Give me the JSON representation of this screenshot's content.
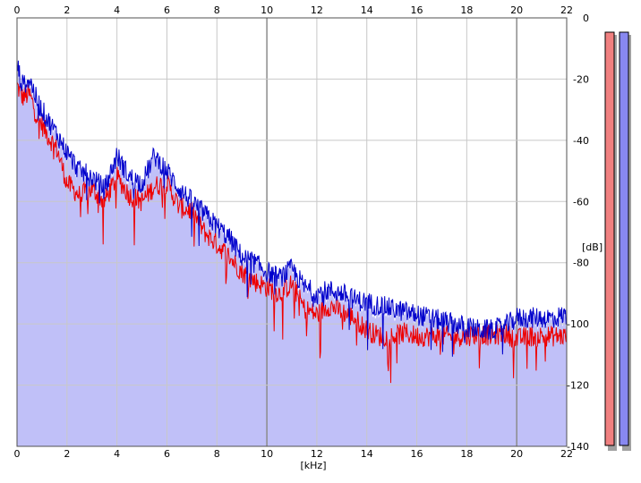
{
  "chart_data": {
    "type": "line",
    "title": "",
    "xlabel": "[kHz]",
    "ylabel": "[dB]",
    "xlim": [
      0,
      22
    ],
    "ylim": [
      -140,
      0
    ],
    "x_ticks": [
      "0",
      "2",
      "4",
      "6",
      "8",
      "10",
      "12",
      "14",
      "16",
      "18",
      "20",
      "22"
    ],
    "y_ticks": [
      "0",
      "-20",
      "-40",
      "-60",
      "-80",
      "-100",
      "-120",
      "-140"
    ],
    "grid": true,
    "fill_under": true,
    "colors": {
      "channel_left": "#ee0000",
      "channel_right": "#0000cc",
      "fill": "#c0c0f8",
      "grid": "#c8c8c8",
      "grid_major": "#8c8c8c",
      "meter_left": "#f08080",
      "meter_right": "#8888f0"
    },
    "series": [
      {
        "color": "channel_left",
        "x": [
          0,
          0.2,
          0.5,
          0.8,
          1.2,
          1.6,
          2.0,
          2.5,
          3.0,
          3.5,
          4.0,
          4.5,
          5.0,
          5.5,
          6.0,
          6.5,
          7.0,
          7.5,
          8.0,
          8.5,
          9.0,
          9.5,
          10.0,
          10.5,
          11.0,
          11.5,
          12.0,
          12.5,
          13.0,
          13.5,
          14.0,
          14.5,
          15.0,
          15.5,
          16.0,
          16.5,
          17.0,
          17.5,
          18.0,
          18.5,
          19.0,
          19.5,
          20.0,
          20.5,
          21.0,
          21.5,
          22.0
        ],
        "values": [
          -22,
          -26,
          -25,
          -32,
          -38,
          -43,
          -54,
          -58,
          -56,
          -60,
          -52,
          -58,
          -60,
          -55,
          -54,
          -62,
          -63,
          -70,
          -74,
          -78,
          -83,
          -86,
          -88,
          -90,
          -87,
          -95,
          -97,
          -94,
          -96,
          -98,
          -102,
          -104,
          -104,
          -103,
          -104,
          -104,
          -104,
          -104,
          -104,
          -103,
          -104,
          -103,
          -105,
          -104,
          -104,
          -104,
          -104
        ]
      },
      {
        "color": "channel_right",
        "x": [
          0,
          0.2,
          0.5,
          0.8,
          1.2,
          1.6,
          2.0,
          2.5,
          3.0,
          3.5,
          4.0,
          4.5,
          5.0,
          5.5,
          6.0,
          6.5,
          7.0,
          7.5,
          8.0,
          8.5,
          9.0,
          9.5,
          10.0,
          10.5,
          11.0,
          11.5,
          12.0,
          12.5,
          13.0,
          13.5,
          14.0,
          14.5,
          15.0,
          15.5,
          16.0,
          16.5,
          17.0,
          17.5,
          18.0,
          18.5,
          19.0,
          19.5,
          20.0,
          20.5,
          21.0,
          21.5,
          22.0
        ],
        "values": [
          -15,
          -22,
          -20,
          -27,
          -33,
          -38,
          -44,
          -50,
          -52,
          -56,
          -45,
          -52,
          -54,
          -45,
          -50,
          -56,
          -60,
          -64,
          -68,
          -72,
          -78,
          -80,
          -83,
          -85,
          -82,
          -88,
          -90,
          -89,
          -90,
          -92,
          -93,
          -94,
          -95,
          -96,
          -97,
          -98,
          -99,
          -100,
          -101,
          -102,
          -102,
          -101,
          -98,
          -98,
          -98,
          -98,
          -97
        ]
      }
    ]
  },
  "level_meters": {
    "left": {
      "color": "meter_left"
    },
    "right": {
      "color": "meter_right"
    }
  }
}
